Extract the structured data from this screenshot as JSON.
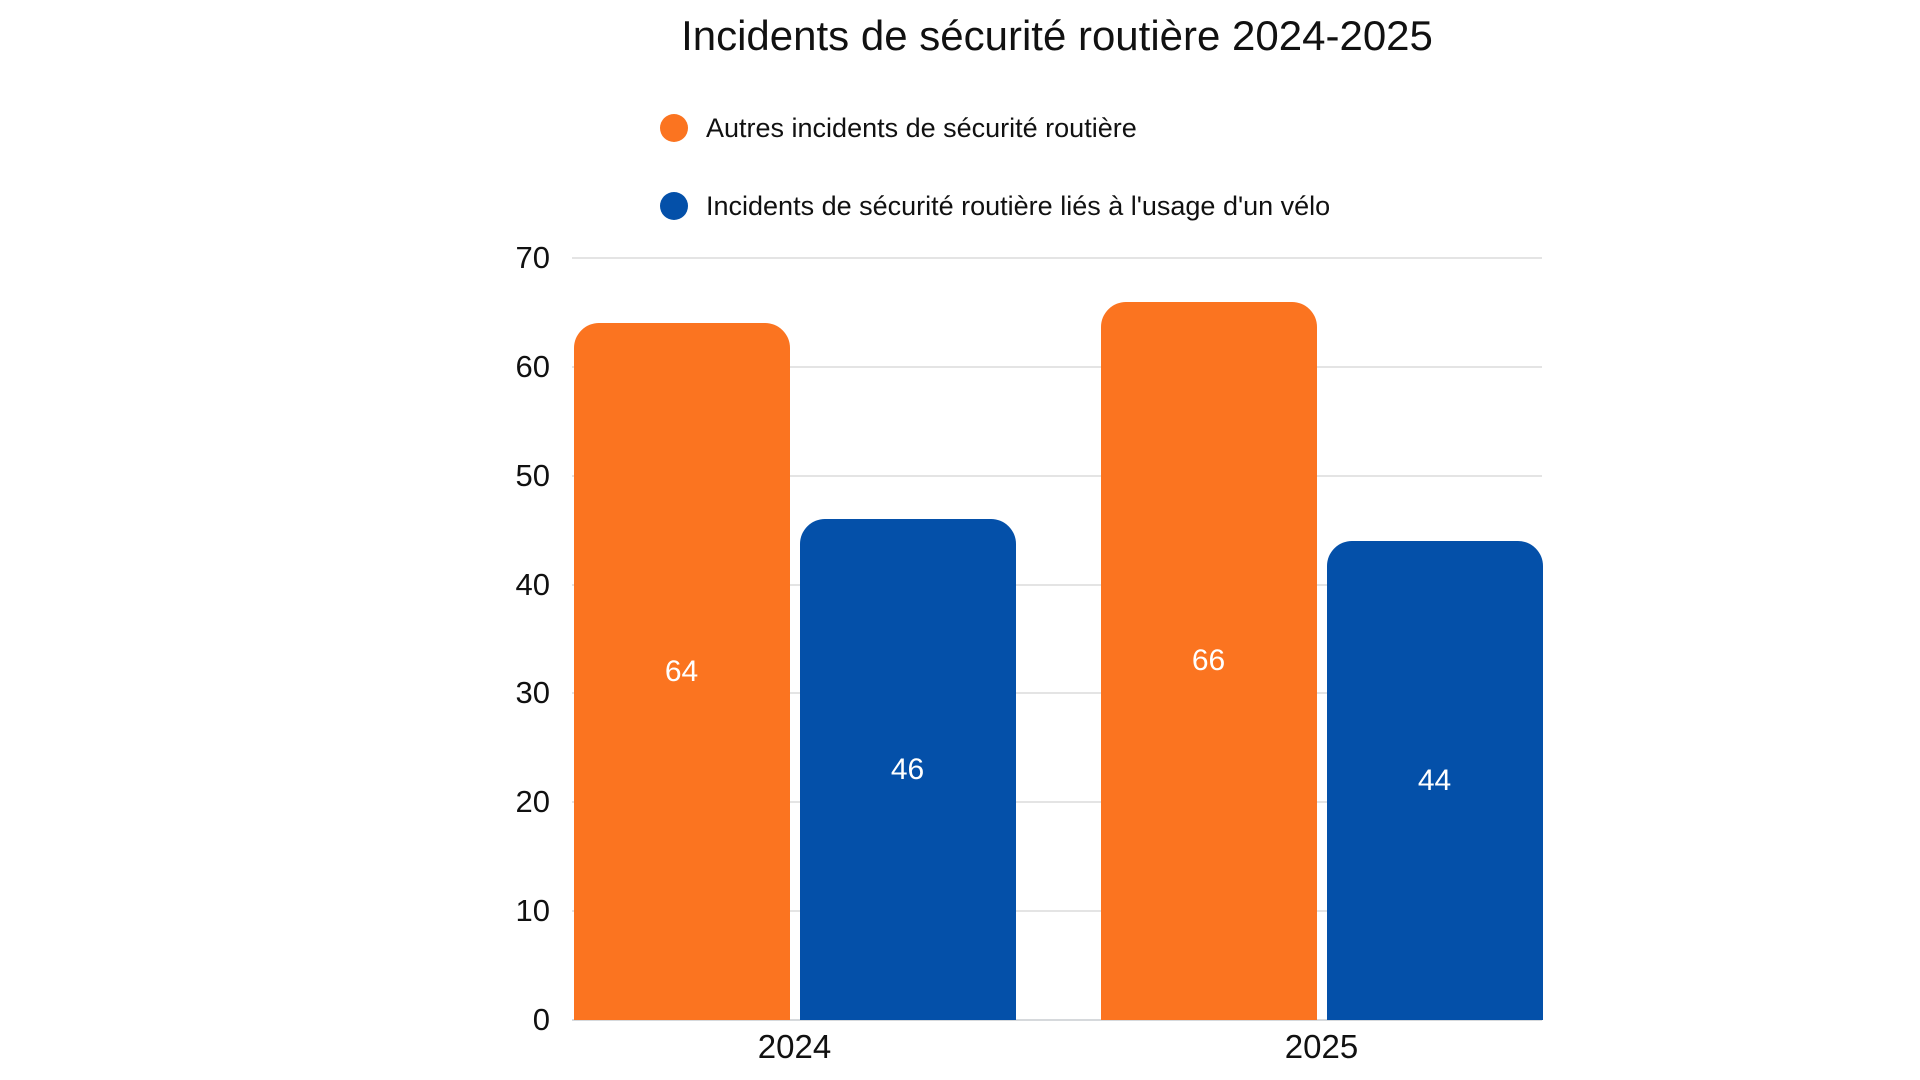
{
  "chart_data": {
    "type": "bar",
    "title": "Incidents de sécurité routière 2024-2025",
    "categories": [
      "2024",
      "2025"
    ],
    "series": [
      {
        "name": "Autres incidents de sécurité routière",
        "color": "#FB7420",
        "values": [
          64,
          66
        ]
      },
      {
        "name": "Incidents de sécurité routière liés à l'usage d'un vélo",
        "color": "#0450A9",
        "values": [
          46,
          44
        ]
      }
    ],
    "xlabel": "",
    "ylabel": "",
    "ylim": [
      0,
      70
    ],
    "yticks": [
      0,
      10,
      20,
      30,
      40,
      50,
      60,
      70
    ],
    "grid": true,
    "legend_position": "top-left-above-plot",
    "value_labels": "inside-center-white",
    "background": "#ffffff",
    "gridline_color": "#e4e4e4",
    "text_color": "#111111"
  }
}
